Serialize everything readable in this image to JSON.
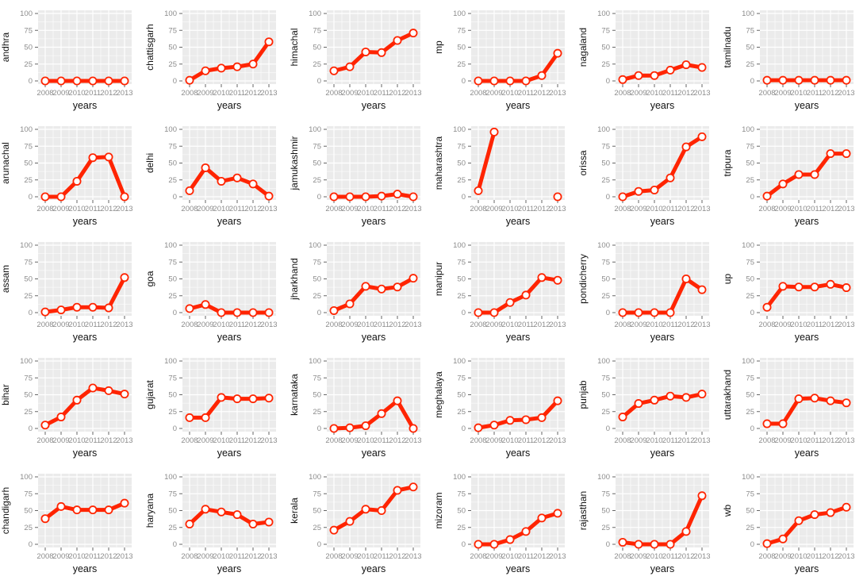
{
  "page": {
    "background": "#ffffff"
  },
  "chart_data": {
    "type": "line",
    "layout": "facet-grid-5x6",
    "x": [
      2008,
      2009,
      2010,
      2011,
      2012,
      2013
    ],
    "x_tick_labels": [
      "2008",
      "2009",
      "2010",
      "2011",
      "2012",
      "2013"
    ],
    "xlabel": "years",
    "ylim": [
      0,
      100
    ],
    "y_ticks": [
      0,
      25,
      50,
      75,
      100
    ],
    "grid": "on",
    "legend": "none",
    "style": {
      "panel_bg": "#ebebeb",
      "grid_color": "#ffffff",
      "line_color": "#ff2400",
      "point_fill": "#ffffff",
      "point_stroke": "#ff2400",
      "tick_label_color": "#8c8c8c",
      "axis_title_color": "#111111",
      "tick_mark_color": "#666666"
    },
    "series": [
      {
        "name": "andhra",
        "values": [
          0,
          0,
          0,
          0,
          0,
          0
        ]
      },
      {
        "name": "chattisgarh",
        "values": [
          1,
          15,
          19,
          21,
          25,
          58
        ]
      },
      {
        "name": "himachal",
        "values": [
          15,
          21,
          43,
          42,
          60,
          71
        ]
      },
      {
        "name": "mp",
        "values": [
          0,
          0,
          0,
          0,
          8,
          41
        ]
      },
      {
        "name": "nagaland",
        "values": [
          2,
          8,
          8,
          16,
          24,
          20
        ]
      },
      {
        "name": "tamilnadu",
        "values": [
          1,
          1,
          1,
          1,
          1,
          1
        ]
      },
      {
        "name": "arunachal",
        "values": [
          0,
          0,
          23,
          58,
          59,
          0
        ]
      },
      {
        "name": "delhi",
        "values": [
          9,
          43,
          23,
          28,
          19,
          1
        ]
      },
      {
        "name": "jamukashmir",
        "values": [
          0,
          0,
          0,
          1,
          4,
          0
        ]
      },
      {
        "name": "maharashtra",
        "values": [
          9,
          96,
          null,
          null,
          null,
          0
        ]
      },
      {
        "name": "orissa",
        "values": [
          0,
          8,
          10,
          28,
          74,
          89
        ]
      },
      {
        "name": "tripura",
        "values": [
          1,
          19,
          33,
          33,
          64,
          64
        ]
      },
      {
        "name": "assam",
        "values": [
          1,
          4,
          8,
          8,
          7,
          52
        ]
      },
      {
        "name": "goa",
        "values": [
          6,
          12,
          0,
          0,
          0,
          0
        ]
      },
      {
        "name": "jharkhand",
        "values": [
          3,
          13,
          39,
          35,
          38,
          51
        ]
      },
      {
        "name": "manipur",
        "values": [
          0,
          0,
          15,
          26,
          52,
          48
        ]
      },
      {
        "name": "pondicherry",
        "values": [
          0,
          0,
          0,
          0,
          50,
          34
        ]
      },
      {
        "name": "up",
        "values": [
          8,
          39,
          38,
          38,
          42,
          37
        ]
      },
      {
        "name": "bihar",
        "values": [
          5,
          17,
          42,
          60,
          56,
          51
        ]
      },
      {
        "name": "gujarat",
        "values": [
          16,
          16,
          46,
          44,
          44,
          45
        ]
      },
      {
        "name": "karnataka",
        "values": [
          0,
          1,
          4,
          22,
          41,
          0
        ]
      },
      {
        "name": "meghalaya",
        "values": [
          1,
          5,
          12,
          13,
          16,
          41
        ]
      },
      {
        "name": "punjab",
        "values": [
          17,
          37,
          42,
          48,
          46,
          51
        ]
      },
      {
        "name": "uttarakhand",
        "values": [
          7,
          7,
          44,
          45,
          41,
          38
        ]
      },
      {
        "name": "chandigarh",
        "values": [
          38,
          56,
          51,
          51,
          51,
          61
        ]
      },
      {
        "name": "haryana",
        "values": [
          30,
          52,
          48,
          44,
          30,
          33
        ]
      },
      {
        "name": "kerala",
        "values": [
          21,
          34,
          52,
          50,
          80,
          85
        ]
      },
      {
        "name": "mizoram",
        "values": [
          0,
          0,
          7,
          19,
          39,
          46
        ]
      },
      {
        "name": "rajasthan",
        "values": [
          3,
          0,
          0,
          0,
          19,
          72
        ]
      },
      {
        "name": "wb",
        "values": [
          1,
          8,
          35,
          44,
          47,
          55
        ]
      }
    ]
  }
}
